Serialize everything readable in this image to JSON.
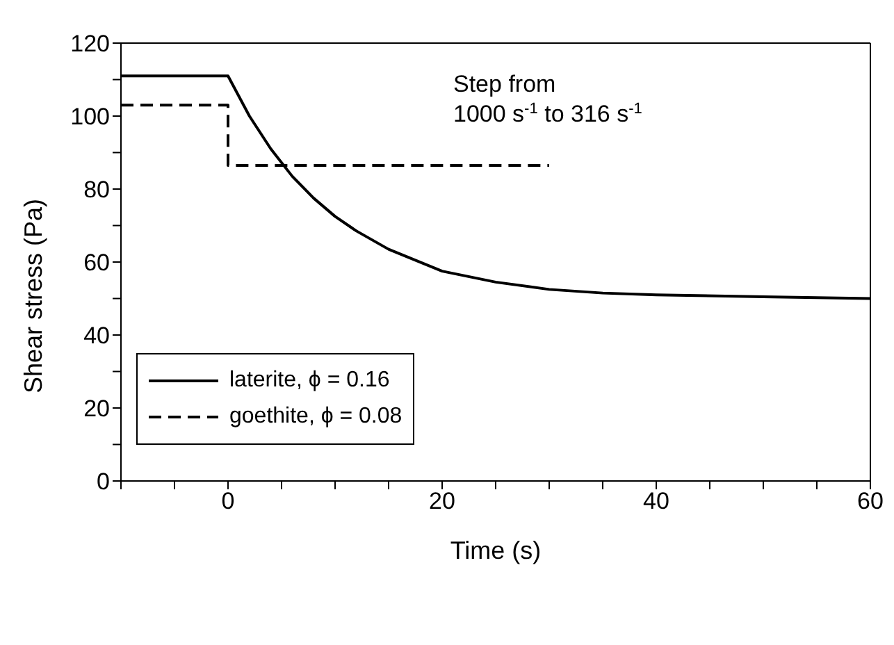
{
  "chart_data": {
    "type": "line",
    "xlabel": "Time (s)",
    "ylabel": "Shear stress (Pa)",
    "annotations": [
      "Step from\n1000 s$^{-1}$ to 316 s$^{-1}$"
    ],
    "series": [
      {
        "name": "laterite, ϕ = 0.16",
        "color": "#000000",
        "line_style": "solid",
        "x": [
          -10,
          0,
          2,
          4,
          6,
          8,
          10,
          12,
          15,
          20,
          25,
          30,
          35,
          40,
          50,
          60
        ],
        "values": [
          111,
          111,
          100,
          91,
          83.5,
          77.5,
          72.5,
          68.5,
          63.5,
          57.5,
          54.5,
          52.5,
          51.5,
          51,
          50.5,
          50
        ]
      },
      {
        "name": "goethite, ϕ = 0.08",
        "color": "#000000",
        "line_style": "dashed",
        "x": [
          -10,
          0,
          0,
          30
        ],
        "values": [
          103,
          103,
          86.5,
          86.5
        ]
      }
    ],
    "xlim": [
      -10,
      60
    ],
    "xticks": [
      {
        "value": -10,
        "label": null
      },
      {
        "value": -5,
        "label": null
      },
      0,
      {
        "value": 5,
        "label": null
      },
      {
        "value": 10,
        "label": null
      },
      {
        "value": 15,
        "label": null
      },
      20,
      {
        "value": 25,
        "label": null
      },
      {
        "value": 30,
        "label": null
      },
      {
        "value": 35,
        "label": null
      },
      40,
      {
        "value": 45,
        "label": null
      },
      {
        "value": 50,
        "label": null
      },
      {
        "value": 55,
        "label": null
      },
      60
    ],
    "ylim": [
      0,
      120
    ],
    "yticks": [
      0,
      {
        "value": 10,
        "label": null
      },
      20,
      {
        "value": 30,
        "label": null
      },
      40,
      {
        "value": 50,
        "label": null
      },
      60,
      {
        "value": 70,
        "label": null
      },
      80,
      {
        "value": 90,
        "label": null
      },
      100,
      {
        "value": 110,
        "label": null
      },
      120
    ],
    "grid": false,
    "legend": "bottom left",
    "marker": "none"
  }
}
